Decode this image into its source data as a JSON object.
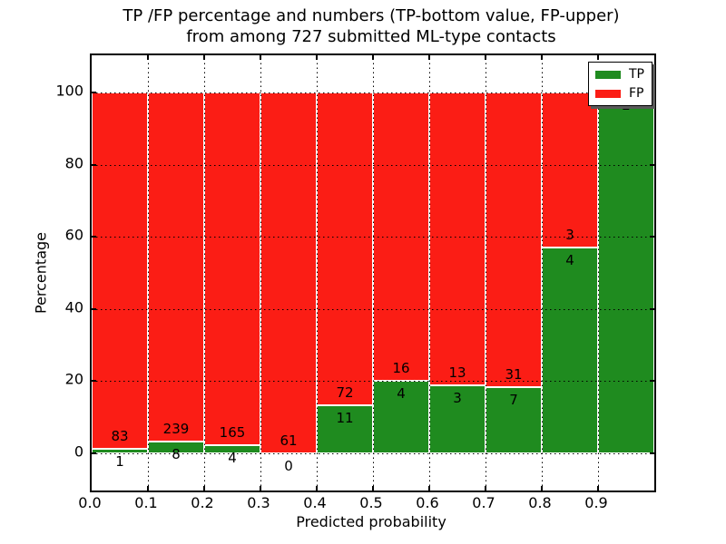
{
  "title": {
    "line1": "TP /FP percentage and numbers (TP-bottom value, FP-upper)",
    "line2": "from among 727 submitted ML-type contacts"
  },
  "axes": {
    "xlabel": "Predicted probability",
    "ylabel": "Percentage",
    "x_tick_labels": [
      "0.0",
      "0.1",
      "0.2",
      "0.3",
      "0.4",
      "0.5",
      "0.6",
      "0.7",
      "0.8",
      "0.9"
    ],
    "y_tick_values": [
      0,
      20,
      40,
      60,
      80,
      100
    ]
  },
  "legend": {
    "items": [
      {
        "label": "TP",
        "color": "#1f8b1f"
      },
      {
        "label": "FP",
        "color": "#fb1d15"
      }
    ]
  },
  "chart_data": {
    "type": "bar",
    "subtype": "stacked-percentage",
    "title": "TP /FP percentage and numbers (TP-bottom value, FP-upper)\nfrom among 727 submitted ML-type contacts",
    "xlabel": "Predicted probability",
    "ylabel": "Percentage",
    "total_submitted_contacts": 727,
    "bins": [
      "0.0-0.1",
      "0.1-0.2",
      "0.2-0.3",
      "0.3-0.4",
      "0.4-0.5",
      "0.5-0.6",
      "0.6-0.7",
      "0.7-0.8",
      "0.8-0.9",
      "0.9-1.0"
    ],
    "bin_start": [
      0.0,
      0.1,
      0.2,
      0.3,
      0.4,
      0.5,
      0.6,
      0.7,
      0.8,
      0.9
    ],
    "bin_width": 0.1,
    "series": [
      {
        "name": "TP",
        "color": "#1f8b1f",
        "counts": [
          1,
          8,
          4,
          0,
          11,
          4,
          3,
          7,
          4,
          2
        ]
      },
      {
        "name": "FP",
        "color": "#fb1d15",
        "counts": [
          83,
          239,
          165,
          61,
          72,
          16,
          13,
          31,
          3,
          0
        ]
      }
    ],
    "tp_percentages": [
      1.19,
      3.24,
      2.37,
      0.0,
      13.25,
      20.0,
      18.75,
      18.42,
      57.14,
      100.0
    ],
    "value_label_rule": "FP count drawn above TP/FP boundary, TP count drawn below (TP-bottom value, FP-upper)",
    "xlim": [
      0.0,
      1.0
    ],
    "ylim": [
      -10,
      110
    ],
    "grid": "dotted",
    "legend_position": "upper right"
  }
}
